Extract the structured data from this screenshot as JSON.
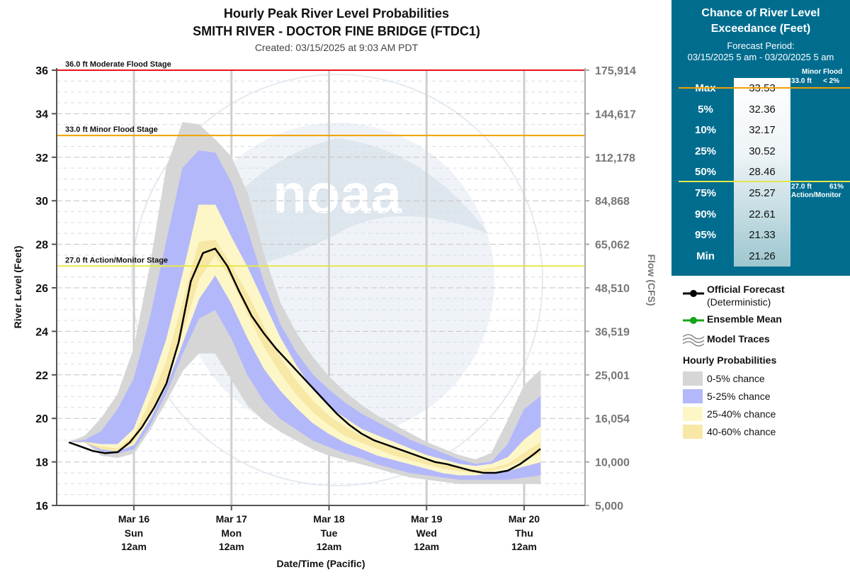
{
  "chart_data": {
    "type": "area",
    "title": "Hourly Peak River Level Probabilities",
    "subtitle": "SMITH RIVER - DOCTOR FINE BRIDGE (FTDC1)",
    "created": "Created: 03/15/2025 at 9:03 AM PDT",
    "ylabel": "River Level (Feet)",
    "y2label": "Flow (CFS)",
    "xlabel": "Date/Time (Pacific)",
    "ylim": [
      16,
      36
    ],
    "y_ticks": [
      "16",
      "18",
      "20",
      "22",
      "24",
      "26",
      "28",
      "30",
      "32",
      "34",
      "36"
    ],
    "y2_ticks": [
      "5,000",
      "10,000",
      "16,054",
      "25,001",
      "36,519",
      "48,510",
      "65,062",
      "84,868",
      "112,178",
      "144,617",
      "175,914"
    ],
    "x_range_hours": [
      -19,
      111
    ],
    "x_ticks": [
      {
        "hour": 0,
        "date": "Mar 16",
        "day": "Sun",
        "time": "12am"
      },
      {
        "hour": 24,
        "date": "Mar 17",
        "day": "Mon",
        "time": "12am"
      },
      {
        "hour": 48,
        "date": "Mar 18",
        "day": "Tue",
        "time": "12am"
      },
      {
        "hour": 72,
        "date": "Mar 19",
        "day": "Wed",
        "time": "12am"
      },
      {
        "hour": 96,
        "date": "Mar 20",
        "day": "Thu",
        "time": "12am"
      }
    ],
    "stages": [
      {
        "value": 36.0,
        "label": "36.0 ft Moderate Flood Stage",
        "color": "#e8141b"
      },
      {
        "value": 33.0,
        "label": "33.0 ft Minor Flood Stage",
        "color": "#f2a000"
      },
      {
        "value": 27.0,
        "label": "27.0 ft Action/Monitor Stage",
        "color": "#e6e84a"
      }
    ],
    "hours": [
      -16,
      -12,
      -8,
      -4,
      0,
      4,
      8,
      12,
      16,
      20,
      24,
      28,
      32,
      36,
      40,
      44,
      48,
      52,
      56,
      60,
      64,
      68,
      72,
      76,
      80,
      84,
      88,
      92,
      96,
      100
    ],
    "bands": {
      "p0": [
        18.9,
        18.9,
        18.3,
        18.2,
        18.4,
        19.5,
        20.8,
        22.2,
        23.0,
        23.0,
        21.8,
        20.6,
        19.9,
        19.4,
        19.0,
        18.6,
        18.3,
        18.1,
        17.9,
        17.7,
        17.5,
        17.3,
        17.2,
        17.1,
        17.0,
        17.0,
        17.0,
        17.0,
        17.0,
        17.0
      ],
      "p5": [
        18.9,
        18.9,
        18.5,
        18.4,
        18.6,
        19.7,
        21.2,
        23.0,
        24.6,
        25.0,
        23.7,
        22.0,
        20.8,
        20.0,
        19.5,
        19.0,
        18.7,
        18.4,
        18.2,
        17.9,
        17.7,
        17.5,
        17.4,
        17.3,
        17.2,
        17.2,
        17.2,
        17.2,
        17.3,
        17.4
      ],
      "p25": [
        18.9,
        18.9,
        18.6,
        18.5,
        18.8,
        20.0,
        21.5,
        23.5,
        25.5,
        26.6,
        25.3,
        23.7,
        22.3,
        21.3,
        20.5,
        19.8,
        19.3,
        18.9,
        18.6,
        18.3,
        18.1,
        17.9,
        17.7,
        17.5,
        17.4,
        17.4,
        17.5,
        17.6,
        17.8,
        18.0
      ],
      "p40": [
        18.9,
        18.9,
        18.6,
        18.5,
        18.9,
        20.2,
        21.8,
        24.0,
        26.4,
        27.5,
        26.4,
        24.8,
        23.3,
        22.1,
        21.1,
        20.3,
        19.7,
        19.2,
        18.9,
        18.6,
        18.3,
        18.1,
        17.9,
        17.7,
        17.6,
        17.5,
        17.6,
        17.8,
        18.1,
        18.4
      ],
      "p60": [
        18.9,
        18.9,
        18.7,
        18.6,
        19.2,
        20.8,
        22.6,
        25.3,
        28.1,
        28.2,
        27.0,
        25.7,
        24.2,
        22.8,
        21.7,
        20.8,
        20.1,
        19.6,
        19.2,
        18.9,
        18.6,
        18.3,
        18.1,
        17.9,
        17.7,
        17.6,
        17.7,
        17.9,
        18.4,
        18.9
      ],
      "p75": [
        18.9,
        18.9,
        18.8,
        18.8,
        19.5,
        21.4,
        23.6,
        26.6,
        29.8,
        29.8,
        28.3,
        26.9,
        25.3,
        23.7,
        22.4,
        21.3,
        20.5,
        20.0,
        19.5,
        19.2,
        18.9,
        18.6,
        18.3,
        18.1,
        17.9,
        17.8,
        17.9,
        18.2,
        19.0,
        19.6
      ],
      "p95": [
        18.9,
        19.0,
        19.4,
        20.4,
        21.8,
        24.6,
        28.1,
        31.5,
        32.3,
        32.2,
        30.8,
        28.6,
        26.2,
        24.3,
        23.0,
        22.0,
        21.3,
        20.7,
        20.2,
        19.8,
        19.4,
        19.0,
        18.7,
        18.4,
        18.1,
        17.9,
        18.0,
        18.8,
        20.4,
        21.0
      ],
      "p100": [
        18.9,
        19.2,
        20.0,
        21.1,
        23.2,
        27.0,
        31.5,
        33.6,
        33.5,
        32.8,
        32.0,
        30.3,
        27.5,
        25.3,
        23.9,
        22.8,
        21.9,
        21.2,
        20.6,
        20.1,
        19.7,
        19.3,
        18.9,
        18.6,
        18.3,
        18.1,
        18.4,
        19.9,
        21.5,
        22.2
      ]
    },
    "forecast": {
      "hours": [
        -16,
        -13,
        -10,
        -7,
        -4,
        -1,
        2,
        5,
        8,
        11,
        14,
        17,
        20,
        23,
        26,
        29,
        32,
        35,
        38,
        41,
        44,
        47,
        50,
        53,
        56,
        59,
        62,
        65,
        68,
        71,
        74,
        77,
        80,
        83,
        86,
        89,
        92,
        95,
        98,
        100
      ],
      "values": [
        18.9,
        18.7,
        18.5,
        18.4,
        18.45,
        18.9,
        19.6,
        20.5,
        21.6,
        23.5,
        26.3,
        27.6,
        27.8,
        27.0,
        25.8,
        24.7,
        23.9,
        23.2,
        22.6,
        22.0,
        21.4,
        20.8,
        20.2,
        19.7,
        19.3,
        19.0,
        18.8,
        18.6,
        18.4,
        18.2,
        18.0,
        17.9,
        17.75,
        17.6,
        17.5,
        17.5,
        17.6,
        17.9,
        18.3,
        18.6
      ]
    },
    "colors": {
      "p0_5": "#d6d6d6",
      "p5_25": "#b3b8fb",
      "p25_40": "#fdf7c8",
      "p40_60": "#f8e8a6",
      "forecast": "#000000",
      "ensemble": "#16a51a"
    }
  },
  "panel": {
    "title_line1": "Chance of River Level",
    "title_line2": "Exceedance (Feet)",
    "period_label": "Forecast Period:",
    "period_range": "03/15/2025 5 am - 03/20/2025 5 am",
    "minor_flood_label": "Minor Flood",
    "minor_flood_value": "33.0 ft",
    "minor_flood_chance": "< 2%",
    "action_value": "27.0 ft",
    "action_chance": "61%",
    "action_label": "Action/Monitor",
    "rows": [
      {
        "label": "Max",
        "value": "33.53"
      },
      {
        "label": "5%",
        "value": "32.36"
      },
      {
        "label": "10%",
        "value": "32.17"
      },
      {
        "label": "25%",
        "value": "30.52"
      },
      {
        "label": "50%",
        "value": "28.46"
      },
      {
        "label": "75%",
        "value": "25.27"
      },
      {
        "label": "90%",
        "value": "22.61"
      },
      {
        "label": "95%",
        "value": "21.33"
      },
      {
        "label": "Min",
        "value": "21.26"
      }
    ]
  },
  "legend": {
    "official": "Official Forecast",
    "official_sub": "(Deterministic)",
    "ensemble": "Ensemble Mean",
    "traces": "Model Traces",
    "hourly": "Hourly Probabilities",
    "b1": "0-5% chance",
    "b2": "5-25% chance",
    "b3": "25-40% chance",
    "b4": "40-60% chance"
  }
}
